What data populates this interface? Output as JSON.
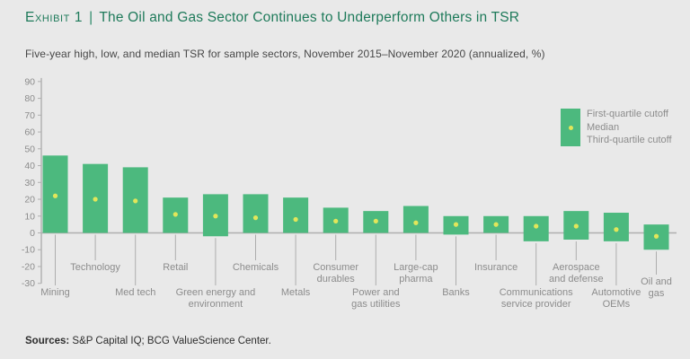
{
  "exhibit": {
    "label": "Exhibit 1",
    "separator": "|",
    "title": "The Oil and Gas Sector Continues to Underperform Others in TSR",
    "subtitle": "Five-year high, low, and median TSR for sample sectors, November 2015–November 2020 (annualized, %)",
    "sources_label": "Sources:",
    "sources_text": " S&P Capital IQ; BCG ValueScience Center."
  },
  "legend": {
    "items": [
      "First-quartile cutoff",
      "Median",
      "Third-quartile cutoff"
    ]
  },
  "colors": {
    "background": "#E9E9E9",
    "title_green": "#1E7A5A",
    "bar_green": "#4CB97E",
    "median_dot_yellow": "#E2E65A",
    "axis_grey": "#AFAFAF",
    "label_grey": "#8C8C8C"
  },
  "chart_data": {
    "type": "bar",
    "subtype": "floating-range-bars-with-median-dot",
    "title": "Five-year high, low, and median TSR for sample sectors, November 2015–November 2020 (annualized, %)",
    "xlabel": "",
    "ylabel": "",
    "ylim": [
      -30,
      90
    ],
    "ytick_step": 10,
    "grid": false,
    "legend_position": "right",
    "categories": [
      "Mining",
      "Technology",
      "Med tech",
      "Retail",
      "Green energy and environment",
      "Chemicals",
      "Metals",
      "Consumer durables",
      "Power and gas utilities",
      "Large-cap pharma",
      "Banks",
      "Insurance",
      "Communications service provider",
      "Aerospace and defense",
      "Automotive OEMs",
      "Oil and gas"
    ],
    "label_lines": [
      [
        "Mining"
      ],
      [
        "Technology"
      ],
      [
        "Med tech"
      ],
      [
        "Retail"
      ],
      [
        "Green energy and",
        "environment"
      ],
      [
        "Chemicals"
      ],
      [
        "Metals"
      ],
      [
        "Consumer",
        "durables"
      ],
      [
        "Power and",
        "gas utilities"
      ],
      [
        "Large-cap",
        "pharma"
      ],
      [
        "Banks"
      ],
      [
        "Insurance"
      ],
      [
        "Communications",
        "service provider"
      ],
      [
        "Aerospace",
        "and defense"
      ],
      [
        "Automotive",
        "OEMs"
      ],
      [
        "Oil and",
        "gas"
      ]
    ],
    "label_row": [
      "lower",
      "upper",
      "lower",
      "upper",
      "lower",
      "upper",
      "lower",
      "upper",
      "lower",
      "upper",
      "lower",
      "upper",
      "lower",
      "upper",
      "lower",
      "mid"
    ],
    "series": [
      {
        "name": "First-quartile cutoff",
        "values": [
          46,
          41,
          39,
          21,
          23,
          23,
          21,
          15,
          13,
          16,
          10,
          10,
          10,
          13,
          12,
          5
        ]
      },
      {
        "name": "Median",
        "values": [
          22,
          20,
          19,
          11,
          10,
          9,
          8,
          7,
          7,
          6,
          5,
          5,
          4,
          4,
          2,
          -2
        ]
      },
      {
        "name": "Third-quartile cutoff",
        "values": [
          0,
          0,
          0,
          0,
          -2,
          0,
          0,
          0,
          0,
          0,
          -1,
          0,
          -5,
          -4,
          -5,
          -10
        ]
      }
    ]
  }
}
